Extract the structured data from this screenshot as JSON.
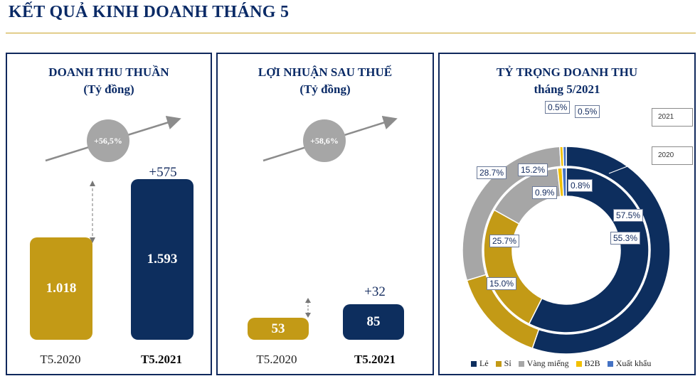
{
  "page_title": "KẾT QUẢ KINH DOANH THÁNG 5",
  "colors": {
    "navy": "#0d2e5e",
    "gold": "#c39a16",
    "grey": "#a6a6a6",
    "yellow": "#f2c000",
    "blue": "#4472c4",
    "title": "#0a2a66"
  },
  "chart_data": [
    {
      "type": "bar",
      "title": "DOANH THU THUẦN",
      "subtitle": "(Tỷ đồng)",
      "categories": [
        "T5.2020",
        "T5.2021"
      ],
      "values": [
        1018,
        1593
      ],
      "value_labels": [
        "1.018",
        "1.593"
      ],
      "growth_badge": "+56,5%",
      "delta_label": "+575"
    },
    {
      "type": "bar",
      "title": "LỢI NHUẬN SAU THUẾ",
      "subtitle": "(Tỷ đồng)",
      "categories": [
        "T5.2020",
        "T5.2021"
      ],
      "values": [
        53,
        85
      ],
      "value_labels": [
        "53",
        "85"
      ],
      "growth_badge": "+58,6%",
      "delta_label": "+32"
    },
    {
      "type": "pie",
      "title": "TỶ TRỌNG DOANH THU",
      "subtitle": "tháng 5/2021",
      "legend": [
        "Lẻ",
        "Sỉ",
        "Vàng miếng",
        "B2B",
        "Xuất khẩu"
      ],
      "legend_placement": "bottom",
      "rings": [
        {
          "name": "2021",
          "values": [
            55.3,
            15.0,
            28.7,
            0.5,
            0.5
          ],
          "labels": [
            "55.3%",
            "15.0%",
            "28.7%",
            "0.5%",
            "0.5%"
          ]
        },
        {
          "name": "2020",
          "values": [
            57.5,
            25.7,
            15.2,
            0.9,
            0.8
          ],
          "labels": [
            "57.5%",
            "25.7%",
            "15.2%",
            "0.9%",
            "0.8%"
          ]
        }
      ]
    }
  ]
}
